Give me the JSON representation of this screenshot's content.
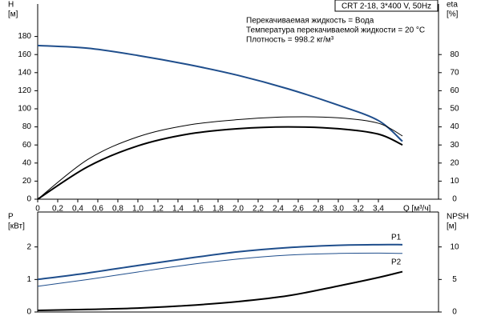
{
  "chart_data": [
    {
      "type": "line",
      "title": "CRT 2-18, 3*400 V, 50Hz",
      "annotations": [
        "Перекачиваемая жидкость = Вода",
        "Температура перекачиваемой жидкости = 20 °C",
        "Плотность = 998.2 кг/м³"
      ],
      "ylabel": [
        "H",
        "[м]"
      ],
      "y2label": [
        "eta",
        "[%]"
      ],
      "xlabel": "Q [м³/ч]",
      "x": [
        0,
        0.5,
        1,
        1.5,
        2,
        2.5,
        3,
        3.4,
        3.64
      ],
      "series": [
        {
          "color": "#1f4e8c",
          "width": 2,
          "values": [
            170,
            167,
            159,
            149,
            137,
            122,
            104,
            87,
            64
          ]
        },
        {
          "color": "#000000",
          "width": 2,
          "axis": "y2",
          "values": [
            0,
            18,
            29.5,
            36,
            39,
            40,
            39,
            36,
            30
          ]
        },
        {
          "color": "#000000",
          "width": 1,
          "axis": "y2",
          "values": [
            0,
            22,
            34.5,
            41,
            44,
            45.5,
            45,
            42,
            35
          ]
        }
      ],
      "xlim": [
        0,
        4.0
      ],
      "xticks": [
        0,
        {
          "value": 0.2,
          "label": "0,2"
        },
        {
          "value": 0.4,
          "label": "0,4"
        },
        {
          "value": 0.6,
          "label": "0,6"
        },
        {
          "value": 0.8,
          "label": "0,8"
        },
        {
          "value": 1.0,
          "label": "1,0"
        },
        {
          "value": 1.2,
          "label": "1,2"
        },
        {
          "value": 1.4,
          "label": "1,4"
        },
        {
          "value": 1.6,
          "label": "1,6"
        },
        {
          "value": 1.8,
          "label": "1,8"
        },
        {
          "value": 2.0,
          "label": "2,0"
        },
        {
          "value": 2.2,
          "label": "2,2"
        },
        {
          "value": 2.4,
          "label": "2,4"
        },
        {
          "value": 2.6,
          "label": "2,6"
        },
        {
          "value": 2.8,
          "label": "2,8"
        },
        {
          "value": 3.0,
          "label": "3,0"
        },
        {
          "value": 3.2,
          "label": "3,2"
        },
        {
          "value": 3.4,
          "label": "3,4"
        }
      ],
      "ylim": [
        0,
        200
      ],
      "yticks": [
        0,
        20,
        40,
        60,
        80,
        100,
        120,
        140,
        160,
        180
      ],
      "y2lim": [
        0,
        100
      ],
      "y2ticks": [
        0,
        10,
        20,
        30,
        40,
        50,
        60,
        70,
        80
      ]
    },
    {
      "type": "line",
      "ylabel": [
        "P",
        "[кВт]"
      ],
      "y2label": [
        "NPSH",
        "[м]"
      ],
      "x": [
        0,
        0.5,
        1,
        1.5,
        2,
        2.5,
        3,
        3.4,
        3.64
      ],
      "series": [
        {
          "name": "P1",
          "color": "#1f4e8c",
          "width": 2,
          "values": [
            1.0,
            1.2,
            1.43,
            1.65,
            1.85,
            1.98,
            2.05,
            2.07,
            2.07
          ]
        },
        {
          "name": "P2",
          "color": "#1f4e8c",
          "width": 1,
          "values": [
            0.79,
            1.0,
            1.23,
            1.45,
            1.63,
            1.75,
            1.8,
            1.81,
            1.8
          ]
        },
        {
          "color": "#000000",
          "width": 2,
          "axis": "y2",
          "values": [
            0.25,
            0.4,
            0.6,
            1.0,
            1.6,
            2.5,
            4.0,
            5.3,
            6.2
          ]
        }
      ],
      "xlim": [
        0,
        4.0
      ],
      "ylim": [
        0,
        3
      ],
      "yticks": [
        0,
        1,
        2
      ],
      "y2lim": [
        0,
        15
      ],
      "y2ticks": [
        0,
        5,
        10
      ]
    }
  ]
}
